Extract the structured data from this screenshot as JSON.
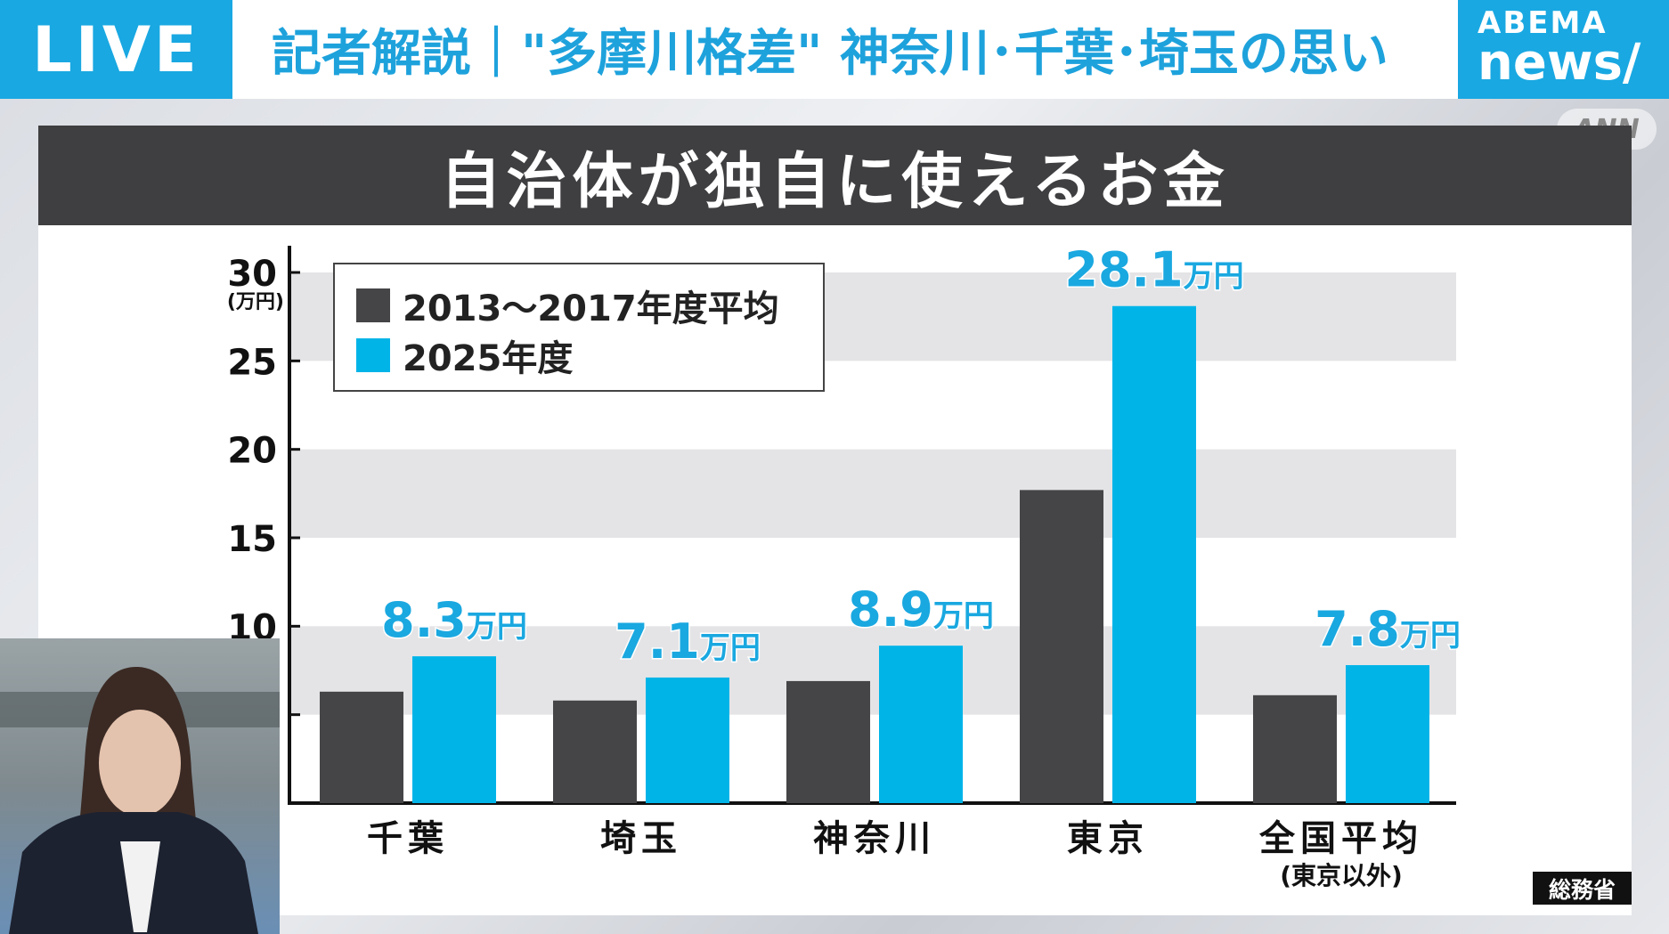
{
  "header": {
    "live_label": "LIVE",
    "headline": "記者解説｜\"多摩川格差\" 神奈川･千葉･埼玉の思い",
    "logo_line1": "ABEMA",
    "logo_line2": "news/",
    "watermark": "ANN",
    "brand_color": "#19a8e2"
  },
  "source": "総務省",
  "chart_data": {
    "type": "bar",
    "title": "自治体が独自に使えるお金",
    "ylabel": "(万円)",
    "ylim": [
      0,
      30
    ],
    "yticks": [
      10,
      15,
      20,
      25,
      30
    ],
    "grid_bands": true,
    "legend_position": "top-left",
    "categories": [
      "千葉",
      "埼玉",
      "神奈川",
      "東京",
      "全国平均"
    ],
    "category_sublabels": [
      "",
      "",
      "",
      "",
      "(東京以外)"
    ],
    "series": [
      {
        "name": "2013～2017年度平均",
        "color": "#454446",
        "values": [
          6.3,
          5.8,
          6.9,
          17.7,
          6.1
        ]
      },
      {
        "name": "2025年度",
        "color": "#00b4e8",
        "values": [
          8.3,
          7.1,
          8.9,
          28.1,
          7.8
        ]
      }
    ],
    "data_labels": [
      {
        "value": "8.3",
        "unit": "万円"
      },
      {
        "value": "7.1",
        "unit": "万円"
      },
      {
        "value": "8.9",
        "unit": "万円"
      },
      {
        "value": "28.1",
        "unit": "万円"
      },
      {
        "value": "7.8",
        "unit": "万円"
      }
    ]
  }
}
